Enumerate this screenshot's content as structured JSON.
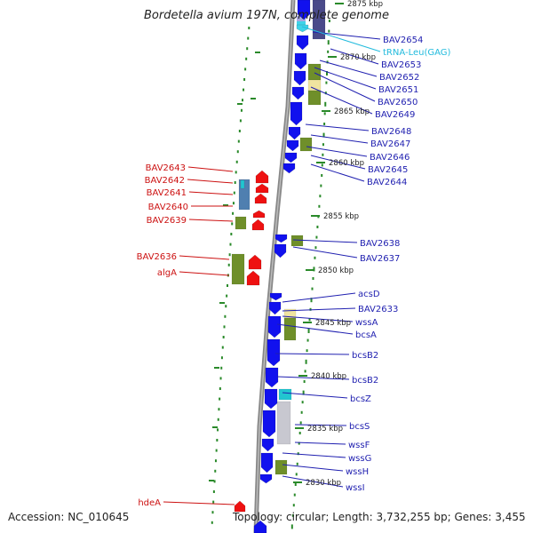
{
  "title": "Bordetella avium 197N, complete genome",
  "accession": "Accession: NC_010645",
  "topology": "Topology: circular; Length: 3,732,255 bp; Genes: 3,455",
  "colors": {
    "plus_strand": "#1111ee",
    "minus_strand": "#ee1111",
    "plus_label": "#1f1fb0",
    "minus_label": "#cc1111",
    "trna": "#22bbdd",
    "cog_green": "#6f8f2a",
    "cog_yellow": "#f0e4a0",
    "cog_steel": "#4f7fb0",
    "cog_grey": "#c8c8d0",
    "backbone": "#888888",
    "tick": "#2a8a2a"
  },
  "kbp_labels": [
    {
      "text": "2875 kbp"
    },
    {
      "text": "2870 kbp"
    },
    {
      "text": "2865 kbp"
    },
    {
      "text": "2860 kbp"
    },
    {
      "text": "2855 kbp"
    },
    {
      "text": "2850 kbp"
    },
    {
      "text": "2845 kbp"
    },
    {
      "text": "2840 kbp"
    },
    {
      "text": "2835 kbp"
    },
    {
      "text": "2830 kbp"
    }
  ],
  "plus_labels": [
    {
      "name": "BAV2654"
    },
    {
      "name": "tRNA-Leu(GAG)",
      "trna": true
    },
    {
      "name": "BAV2653"
    },
    {
      "name": "BAV2652"
    },
    {
      "name": "BAV2651"
    },
    {
      "name": "BAV2650"
    },
    {
      "name": "BAV2649"
    },
    {
      "name": "BAV2648"
    },
    {
      "name": "BAV2647"
    },
    {
      "name": "BAV2646"
    },
    {
      "name": "BAV2645"
    },
    {
      "name": "BAV2644"
    },
    {
      "name": "BAV2638"
    },
    {
      "name": "BAV2637"
    },
    {
      "name": "acsD"
    },
    {
      "name": "BAV2633"
    },
    {
      "name": "wssA"
    },
    {
      "name": "bcsA"
    },
    {
      "name": "bcsB2"
    },
    {
      "name": "bcsB2"
    },
    {
      "name": "bcsZ"
    },
    {
      "name": "bcsS"
    },
    {
      "name": "wssF"
    },
    {
      "name": "wssG"
    },
    {
      "name": "wssH"
    },
    {
      "name": "wssI"
    }
  ],
  "minus_labels": [
    {
      "name": "BAV2643"
    },
    {
      "name": "BAV2642"
    },
    {
      "name": "BAV2641"
    },
    {
      "name": "BAV2640"
    },
    {
      "name": "BAV2639"
    },
    {
      "name": "BAV2636"
    },
    {
      "name": "algA"
    },
    {
      "name": "hdeA"
    }
  ]
}
